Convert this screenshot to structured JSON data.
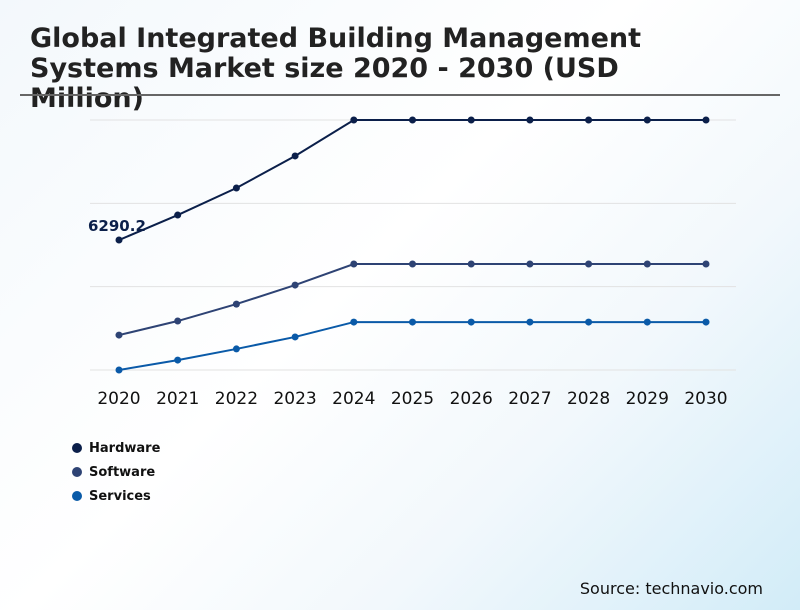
{
  "chart_data": {
    "type": "line",
    "title": "Global Integrated Building Management Systems Market size 2020 - 2030 (USD Million)",
    "x": [
      "2020",
      "2021",
      "2022",
      "2023",
      "2024",
      "2025",
      "2026",
      "2027",
      "2028",
      "2029",
      "2030"
    ],
    "ylim": [
      0,
      12100
    ],
    "grid": true,
    "legend_placement": "bottom-left",
    "annotation": "6290.2",
    "series": [
      {
        "name": "Hardware",
        "color": "#0b1f4a",
        "values": [
          6290.2,
          7500,
          8810,
          10360,
          12100,
          12100,
          12100,
          12100,
          12100,
          12100,
          12100
        ]
      },
      {
        "name": "Software",
        "color": "#2e4374",
        "values": [
          1690,
          2370,
          3190,
          4110,
          5130,
          5130,
          5130,
          5130,
          5130,
          5130,
          5130
        ]
      },
      {
        "name": "Services",
        "color": "#0a5aa8",
        "values": [
          0,
          480,
          1020,
          1600,
          2320,
          2320,
          2320,
          2320,
          2320,
          2320,
          2320
        ]
      }
    ]
  },
  "source": "Source: technavio.com"
}
